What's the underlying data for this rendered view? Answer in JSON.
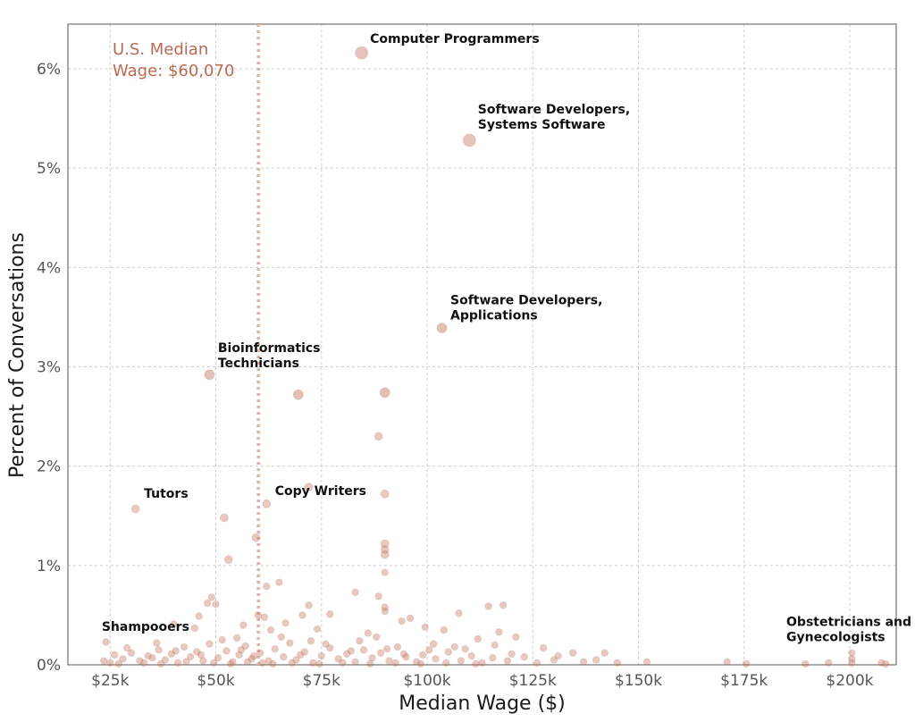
{
  "chart_data": {
    "type": "scatter",
    "xlabel": "Median Wage ($)",
    "ylabel": "Percent of Conversations",
    "xlim": [
      15000,
      211000
    ],
    "ylim": [
      0,
      6.45
    ],
    "x_ticks": [
      {
        "value": 25000,
        "label": "$25k"
      },
      {
        "value": 50000,
        "label": "$50k"
      },
      {
        "value": 75000,
        "label": "$75k"
      },
      {
        "value": 100000,
        "label": "$100k"
      },
      {
        "value": 125000,
        "label": "$125k"
      },
      {
        "value": 150000,
        "label": "$150k"
      },
      {
        "value": 175000,
        "label": "$175k"
      },
      {
        "value": 200000,
        "label": "$200k"
      }
    ],
    "y_ticks": [
      {
        "value": 0,
        "label": "0%"
      },
      {
        "value": 1,
        "label": "1%"
      },
      {
        "value": 2,
        "label": "2%"
      },
      {
        "value": 3,
        "label": "3%"
      },
      {
        "value": 4,
        "label": "4%"
      },
      {
        "value": 5,
        "label": "5%"
      },
      {
        "value": 6,
        "label": "6%"
      }
    ],
    "grid": true,
    "point_color": "#c0715c",
    "median_line": {
      "value": 60070,
      "label_line1": "U.S. Median",
      "label_line2": "Wage: $60,070",
      "color": "#e0b2a4"
    },
    "points": [
      {
        "x": 84500,
        "y": 6.16
      },
      {
        "x": 110000,
        "y": 5.28
      },
      {
        "x": 103500,
        "y": 3.39
      },
      {
        "x": 48500,
        "y": 2.92
      },
      {
        "x": 69500,
        "y": 2.72
      },
      {
        "x": 90000,
        "y": 2.74
      },
      {
        "x": 88500,
        "y": 2.3
      },
      {
        "x": 72000,
        "y": 1.79
      },
      {
        "x": 90000,
        "y": 1.72
      },
      {
        "x": 31000,
        "y": 1.57
      },
      {
        "x": 62000,
        "y": 1.62
      },
      {
        "x": 52000,
        "y": 1.48
      },
      {
        "x": 59500,
        "y": 1.28
      },
      {
        "x": 90000,
        "y": 1.22
      },
      {
        "x": 90000,
        "y": 1.16
      },
      {
        "x": 90000,
        "y": 1.11
      },
      {
        "x": 53000,
        "y": 1.06
      },
      {
        "x": 90000,
        "y": 0.93
      },
      {
        "x": 65000,
        "y": 0.83
      },
      {
        "x": 62000,
        "y": 0.79
      },
      {
        "x": 83000,
        "y": 0.73
      },
      {
        "x": 88500,
        "y": 0.69
      },
      {
        "x": 49000,
        "y": 0.68
      },
      {
        "x": 48000,
        "y": 0.62
      },
      {
        "x": 50000,
        "y": 0.61
      },
      {
        "x": 72000,
        "y": 0.6
      },
      {
        "x": 90000,
        "y": 0.58
      },
      {
        "x": 114500,
        "y": 0.59
      },
      {
        "x": 118000,
        "y": 0.6
      },
      {
        "x": 90000,
        "y": 0.54
      },
      {
        "x": 107500,
        "y": 0.52
      },
      {
        "x": 77000,
        "y": 0.51
      },
      {
        "x": 46000,
        "y": 0.49
      },
      {
        "x": 60000,
        "y": 0.5
      },
      {
        "x": 61500,
        "y": 0.48
      },
      {
        "x": 70500,
        "y": 0.5
      },
      {
        "x": 96000,
        "y": 0.47
      },
      {
        "x": 94000,
        "y": 0.44
      },
      {
        "x": 40000,
        "y": 0.41
      },
      {
        "x": 56500,
        "y": 0.4
      },
      {
        "x": 66500,
        "y": 0.42
      },
      {
        "x": 99500,
        "y": 0.38
      },
      {
        "x": 104000,
        "y": 0.35
      },
      {
        "x": 117000,
        "y": 0.33
      },
      {
        "x": 63000,
        "y": 0.35
      },
      {
        "x": 45000,
        "y": 0.37
      },
      {
        "x": 74000,
        "y": 0.36
      },
      {
        "x": 86000,
        "y": 0.32
      },
      {
        "x": 121000,
        "y": 0.28
      },
      {
        "x": 24000,
        "y": 0.23
      },
      {
        "x": 36000,
        "y": 0.22
      },
      {
        "x": 55000,
        "y": 0.27
      },
      {
        "x": 72500,
        "y": 0.24
      },
      {
        "x": 88000,
        "y": 0.28
      },
      {
        "x": 112000,
        "y": 0.26
      },
      {
        "x": 101500,
        "y": 0.21
      },
      {
        "x": 116000,
        "y": 0.2
      },
      {
        "x": 127500,
        "y": 0.17
      },
      {
        "x": 134500,
        "y": 0.12
      },
      {
        "x": 142000,
        "y": 0.12
      },
      {
        "x": 152000,
        "y": 0.03
      },
      {
        "x": 171000,
        "y": 0.03
      },
      {
        "x": 175500,
        "y": 0.01
      },
      {
        "x": 189500,
        "y": 0.01
      },
      {
        "x": 195000,
        "y": 0.02
      },
      {
        "x": 200500,
        "y": 0.12
      },
      {
        "x": 200500,
        "y": 0.06
      },
      {
        "x": 200500,
        "y": 0.02
      },
      {
        "x": 207500,
        "y": 0.02
      },
      {
        "x": 208500,
        "y": 0.01
      },
      {
        "x": 26000,
        "y": 0.1
      },
      {
        "x": 28000,
        "y": 0.06
      },
      {
        "x": 30000,
        "y": 0.12
      },
      {
        "x": 32000,
        "y": 0.04
      },
      {
        "x": 34000,
        "y": 0.09
      },
      {
        "x": 36500,
        "y": 0.15
      },
      {
        "x": 38000,
        "y": 0.05
      },
      {
        "x": 39500,
        "y": 0.11
      },
      {
        "x": 41000,
        "y": 0.02
      },
      {
        "x": 42500,
        "y": 0.18
      },
      {
        "x": 44000,
        "y": 0.08
      },
      {
        "x": 45500,
        "y": 0.13
      },
      {
        "x": 47000,
        "y": 0.04
      },
      {
        "x": 48500,
        "y": 0.21
      },
      {
        "x": 50500,
        "y": 0.07
      },
      {
        "x": 52500,
        "y": 0.14
      },
      {
        "x": 54000,
        "y": 0.03
      },
      {
        "x": 55500,
        "y": 0.1
      },
      {
        "x": 57000,
        "y": 0.19
      },
      {
        "x": 58500,
        "y": 0.06
      },
      {
        "x": 60500,
        "y": 0.12
      },
      {
        "x": 62500,
        "y": 0.04
      },
      {
        "x": 64000,
        "y": 0.16
      },
      {
        "x": 66000,
        "y": 0.08
      },
      {
        "x": 67500,
        "y": 0.22
      },
      {
        "x": 69000,
        "y": 0.05
      },
      {
        "x": 71000,
        "y": 0.13
      },
      {
        "x": 73000,
        "y": 0.02
      },
      {
        "x": 75000,
        "y": 0.09
      },
      {
        "x": 77000,
        "y": 0.17
      },
      {
        "x": 79000,
        "y": 0.06
      },
      {
        "x": 81000,
        "y": 0.11
      },
      {
        "x": 83000,
        "y": 0.03
      },
      {
        "x": 85000,
        "y": 0.15
      },
      {
        "x": 87000,
        "y": 0.07
      },
      {
        "x": 89000,
        "y": 0.12
      },
      {
        "x": 91000,
        "y": 0.04
      },
      {
        "x": 93000,
        "y": 0.18
      },
      {
        "x": 95000,
        "y": 0.08
      },
      {
        "x": 97500,
        "y": 0.03
      },
      {
        "x": 99000,
        "y": 0.1
      },
      {
        "x": 102000,
        "y": 0.06
      },
      {
        "x": 105000,
        "y": 0.13
      },
      {
        "x": 108000,
        "y": 0.04
      },
      {
        "x": 110500,
        "y": 0.09
      },
      {
        "x": 113000,
        "y": 0.02
      },
      {
        "x": 115500,
        "y": 0.07
      },
      {
        "x": 119000,
        "y": 0.04
      },
      {
        "x": 123000,
        "y": 0.08
      },
      {
        "x": 126000,
        "y": 0.02
      },
      {
        "x": 130000,
        "y": 0.05
      },
      {
        "x": 137000,
        "y": 0.03
      },
      {
        "x": 145000,
        "y": 0.02
      },
      {
        "x": 27000,
        "y": 0.01
      },
      {
        "x": 33000,
        "y": 0.02
      },
      {
        "x": 37000,
        "y": 0.01
      },
      {
        "x": 43000,
        "y": 0.03
      },
      {
        "x": 49500,
        "y": 0.02
      },
      {
        "x": 53500,
        "y": 0.01
      },
      {
        "x": 57500,
        "y": 0.03
      },
      {
        "x": 61000,
        "y": 0.02
      },
      {
        "x": 63500,
        "y": 0.01
      },
      {
        "x": 68000,
        "y": 0.02
      },
      {
        "x": 74500,
        "y": 0.01
      },
      {
        "x": 80000,
        "y": 0.02
      },
      {
        "x": 86500,
        "y": 0.01
      },
      {
        "x": 92500,
        "y": 0.02
      },
      {
        "x": 98500,
        "y": 0.01
      },
      {
        "x": 104500,
        "y": 0.02
      },
      {
        "x": 111500,
        "y": 0.01
      },
      {
        "x": 29000,
        "y": 0.17
      },
      {
        "x": 35000,
        "y": 0.07
      },
      {
        "x": 40500,
        "y": 0.14
      },
      {
        "x": 46500,
        "y": 0.1
      },
      {
        "x": 51500,
        "y": 0.25
      },
      {
        "x": 56000,
        "y": 0.15
      },
      {
        "x": 59000,
        "y": 0.09
      },
      {
        "x": 65500,
        "y": 0.28
      },
      {
        "x": 70000,
        "y": 0.1
      },
      {
        "x": 76000,
        "y": 0.21
      },
      {
        "x": 82000,
        "y": 0.14
      },
      {
        "x": 84000,
        "y": 0.24
      },
      {
        "x": 90500,
        "y": 0.16
      },
      {
        "x": 94500,
        "y": 0.11
      },
      {
        "x": 100500,
        "y": 0.15
      },
      {
        "x": 106500,
        "y": 0.18
      },
      {
        "x": 23500,
        "y": 0.04
      },
      {
        "x": 25000,
        "y": 0.02
      },
      {
        "x": 109000,
        "y": 0.16
      },
      {
        "x": 120000,
        "y": 0.11
      },
      {
        "x": 131000,
        "y": 0.09
      },
      {
        "x": 140000,
        "y": 0.05
      }
    ],
    "annotations": [
      {
        "lines": [
          "Computer Programmers"
        ],
        "x": 86500,
        "y": 6.26
      },
      {
        "lines": [
          "Software Developers,",
          "Systems Software"
        ],
        "x": 112000,
        "y": 5.55
      },
      {
        "lines": [
          "Software Developers,",
          "Applications"
        ],
        "x": 105500,
        "y": 3.63
      },
      {
        "lines": [
          "Bioinformatics",
          "Technicians"
        ],
        "x": 50500,
        "y": 3.15
      },
      {
        "lines": [
          "Tutors"
        ],
        "x": 33000,
        "y": 1.68
      },
      {
        "lines": [
          "Copy Writers"
        ],
        "x": 64000,
        "y": 1.71
      },
      {
        "lines": [
          "Shampooers"
        ],
        "x": 23000,
        "y": 0.34
      },
      {
        "lines": [
          "Obstetricians and",
          "Gynecologists"
        ],
        "x": 185000,
        "y": 0.39
      }
    ]
  }
}
